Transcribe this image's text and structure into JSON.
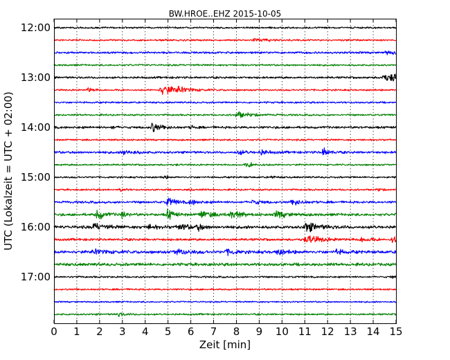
{
  "chart_data": {
    "type": "line",
    "title": "BW.HROE..EHZ 2015-10-05",
    "xlabel": "Zeit  [min]",
    "ylabel": "UTC (Lokalzeit = UTC + 02:00)",
    "xlim": [
      0,
      15
    ],
    "x_ticks": [
      "0",
      "1",
      "2",
      "3",
      "4",
      "5",
      "6",
      "7",
      "8",
      "9",
      "10",
      "11",
      "12",
      "13",
      "14",
      "15"
    ],
    "y_ticks": [
      "12:00",
      "13:00",
      "14:00",
      "15:00",
      "16:00",
      "17:00"
    ],
    "grid": true,
    "trace_colors": [
      "#000000",
      "#ff0000",
      "#0000ff",
      "#008000"
    ],
    "traces": [
      {
        "start": "12:00",
        "noise": 0.3,
        "events": []
      },
      {
        "start": "12:15",
        "noise": 0.3,
        "events": [
          [
            8.8,
            0.5,
            0.6
          ]
        ]
      },
      {
        "start": "12:30",
        "noise": 0.35,
        "events": [
          [
            14.6,
            0.5,
            0.5
          ]
        ]
      },
      {
        "start": "12:45",
        "noise": 0.3,
        "events": []
      },
      {
        "start": "13:00",
        "noise": 0.35,
        "events": [
          [
            14.5,
            1.0,
            0.6
          ],
          [
            14.9,
            1.0,
            0.4
          ]
        ]
      },
      {
        "start": "13:15",
        "noise": 0.3,
        "events": [
          [
            1.5,
            0.8,
            0.3
          ],
          [
            4.8,
            1.6,
            0.8
          ],
          [
            5.5,
            0.8,
            0.5
          ]
        ]
      },
      {
        "start": "13:30",
        "noise": 0.3,
        "events": []
      },
      {
        "start": "13:45",
        "noise": 0.3,
        "events": [
          [
            8.1,
            1.0,
            0.8
          ]
        ]
      },
      {
        "start": "14:00",
        "noise": 0.4,
        "events": [
          [
            2.5,
            0.6,
            0.2
          ],
          [
            4.3,
            1.7,
            0.4
          ],
          [
            6.0,
            0.6,
            0.2
          ]
        ]
      },
      {
        "start": "14:15",
        "noise": 0.3,
        "events": []
      },
      {
        "start": "14:30",
        "noise": 0.4,
        "events": [
          [
            3.1,
            0.8,
            0.5
          ],
          [
            8.1,
            0.7,
            0.4
          ],
          [
            9.1,
            0.7,
            0.4
          ],
          [
            11.8,
            1.5,
            0.3
          ]
        ]
      },
      {
        "start": "14:45",
        "noise": 0.3,
        "events": [
          [
            8.5,
            0.7,
            0.5
          ]
        ]
      },
      {
        "start": "15:00",
        "noise": 0.3,
        "events": [
          [
            4.8,
            0.6,
            0.2
          ],
          [
            9.5,
            0.5,
            0.2
          ]
        ]
      },
      {
        "start": "15:15",
        "noise": 0.3,
        "events": [
          [
            2.9,
            0.6,
            0.2
          ],
          [
            5.9,
            0.5,
            0.2
          ],
          [
            14.2,
            0.5,
            0.3
          ]
        ]
      },
      {
        "start": "15:30",
        "noise": 0.4,
        "events": [
          [
            5.0,
            1.4,
            0.4
          ],
          [
            6.0,
            0.8,
            0.4
          ],
          [
            8.7,
            0.7,
            0.5
          ],
          [
            10.5,
            0.8,
            0.5
          ]
        ]
      },
      {
        "start": "15:45",
        "noise": 0.45,
        "events": [
          [
            1.9,
            1.7,
            0.4
          ],
          [
            3.0,
            0.9,
            0.3
          ],
          [
            5.0,
            1.9,
            0.3
          ],
          [
            6.5,
            1.2,
            0.6
          ],
          [
            7.8,
            1.3,
            0.5
          ],
          [
            9.8,
            1.2,
            0.5
          ]
        ]
      },
      {
        "start": "16:00",
        "noise": 0.5,
        "events": [
          [
            1.8,
            1.2,
            0.5
          ],
          [
            4.2,
            0.9,
            0.3
          ],
          [
            5.5,
            1.0,
            0.5
          ],
          [
            6.3,
            1.0,
            0.3
          ],
          [
            11.1,
            1.6,
            0.6
          ]
        ]
      },
      {
        "start": "16:15",
        "noise": 0.4,
        "events": [
          [
            11.2,
            1.1,
            0.9
          ],
          [
            13.5,
            0.8,
            0.4
          ],
          [
            14.9,
            1.2,
            0.5
          ]
        ]
      },
      {
        "start": "16:30",
        "noise": 0.5,
        "events": [
          [
            1.8,
            0.9,
            0.6
          ],
          [
            5.4,
            1.0,
            0.6
          ],
          [
            7.6,
            0.8,
            0.5
          ],
          [
            9.8,
            0.8,
            0.5
          ],
          [
            12.4,
            0.7,
            0.5
          ]
        ]
      },
      {
        "start": "16:45",
        "noise": 0.5,
        "events": []
      },
      {
        "start": "17:00",
        "noise": 0.3,
        "events": [
          [
            14.8,
            0.5,
            0.2
          ]
        ]
      },
      {
        "start": "17:15",
        "noise": 0.3,
        "events": []
      },
      {
        "start": "17:30",
        "noise": 0.25,
        "events": []
      },
      {
        "start": "17:45",
        "noise": 0.3,
        "events": [
          [
            2.8,
            0.6,
            0.4
          ]
        ]
      }
    ]
  }
}
